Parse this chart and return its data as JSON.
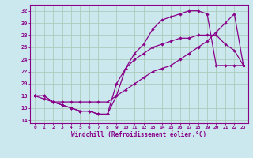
{
  "xlabel": "Windchill (Refroidissement éolien,°C)",
  "bg_color": "#cce8ef",
  "grid_color": "#aaccbb",
  "line_color": "#880088",
  "xlim": [
    -0.5,
    23.5
  ],
  "ylim": [
    13.5,
    33
  ],
  "xticks": [
    0,
    1,
    2,
    3,
    4,
    5,
    6,
    7,
    8,
    9,
    10,
    11,
    12,
    13,
    14,
    15,
    16,
    17,
    18,
    19,
    20,
    21,
    22,
    23
  ],
  "yticks": [
    14,
    16,
    18,
    20,
    22,
    24,
    26,
    28,
    30,
    32
  ],
  "line1_x": [
    0,
    1,
    2,
    3,
    4,
    5,
    6,
    7,
    8,
    9,
    10,
    11,
    12,
    13,
    14,
    15,
    16,
    17,
    18,
    19,
    20,
    21,
    22,
    23
  ],
  "line1_y": [
    18,
    18,
    17,
    16.5,
    16,
    15.5,
    15.5,
    15,
    15,
    20,
    22.5,
    24,
    25,
    26,
    26.5,
    27,
    27.5,
    27.5,
    28,
    28,
    28,
    26.5,
    25.5,
    23
  ],
  "line2_x": [
    0,
    1,
    2,
    3,
    4,
    5,
    6,
    7,
    8,
    9,
    10,
    11,
    12,
    13,
    14,
    15,
    16,
    17,
    18,
    19,
    20,
    21,
    22,
    23
  ],
  "line2_y": [
    18,
    18,
    17,
    16.5,
    16,
    15.5,
    15.5,
    15,
    15,
    18,
    22.5,
    25,
    26.5,
    29,
    30.5,
    31,
    31.5,
    32,
    32,
    31.5,
    23,
    23,
    23,
    23
  ],
  "line3_x": [
    0,
    1,
    2,
    3,
    4,
    5,
    6,
    7,
    8,
    9,
    10,
    11,
    12,
    13,
    14,
    15,
    16,
    17,
    18,
    19,
    20,
    21,
    22,
    23
  ],
  "line3_y": [
    18,
    17.5,
    17,
    17,
    17,
    17,
    17,
    17,
    17,
    18,
    19,
    20,
    21,
    22,
    22.5,
    23,
    24,
    25,
    26,
    27,
    28.5,
    30,
    31.5,
    23
  ]
}
